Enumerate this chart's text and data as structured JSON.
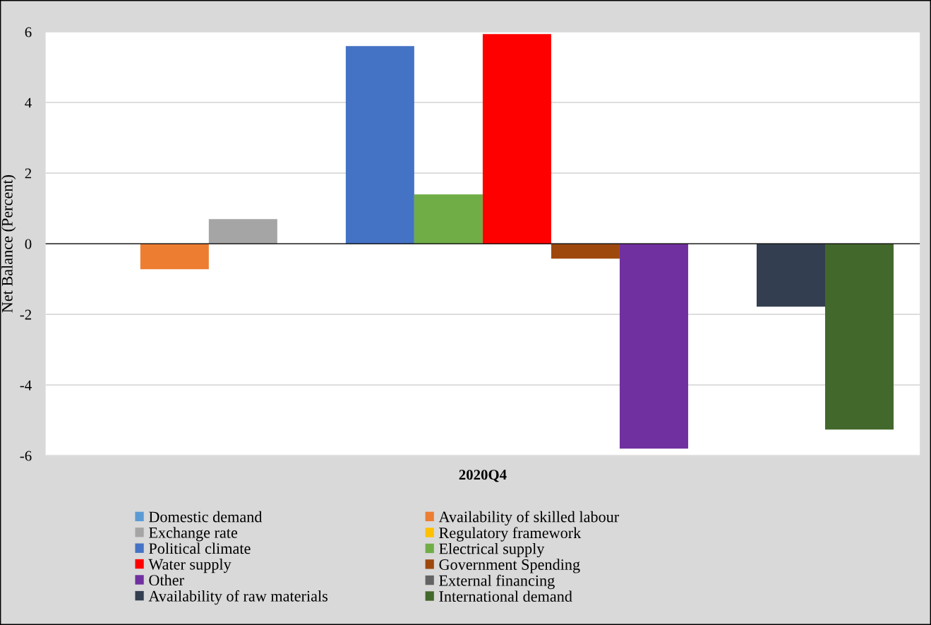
{
  "chart_data": {
    "type": "bar",
    "ylabel": "Net Balance (Percent)",
    "categories": [
      "2020Q4"
    ],
    "series": [
      {
        "name": "Domestic demand",
        "color": "#5b9bd5",
        "values": [
          0
        ]
      },
      {
        "name": "Availability of skilled labour",
        "color": "#ed7d31",
        "values": [
          -0.72
        ]
      },
      {
        "name": "Exchange rate",
        "color": "#a5a5a5",
        "values": [
          0.7
        ]
      },
      {
        "name": "Regulatory framework",
        "color": "#ffc000",
        "values": [
          0
        ]
      },
      {
        "name": "Political climate",
        "color": "#4472c4",
        "values": [
          5.6
        ]
      },
      {
        "name": "Electrical supply",
        "color": "#70ad47",
        "values": [
          1.4
        ]
      },
      {
        "name": "Water supply",
        "color": "#ff0000",
        "values": [
          5.94
        ]
      },
      {
        "name": "Government Spending",
        "color": "#9e480e",
        "values": [
          -0.42
        ]
      },
      {
        "name": "Other",
        "color": "#7030a0",
        "values": [
          -5.8
        ]
      },
      {
        "name": "External financing",
        "color": "#636363",
        "values": [
          0
        ]
      },
      {
        "name": "Availability of raw materials",
        "color": "#333f50",
        "values": [
          -1.78
        ]
      },
      {
        "name": "International demand",
        "color": "#43682b",
        "values": [
          -5.26
        ]
      }
    ],
    "ylim": [
      -6,
      6
    ],
    "yticks": [
      -6,
      -4,
      -2,
      0,
      2,
      4,
      6
    ],
    "grid": "y",
    "legend": "bottom"
  }
}
